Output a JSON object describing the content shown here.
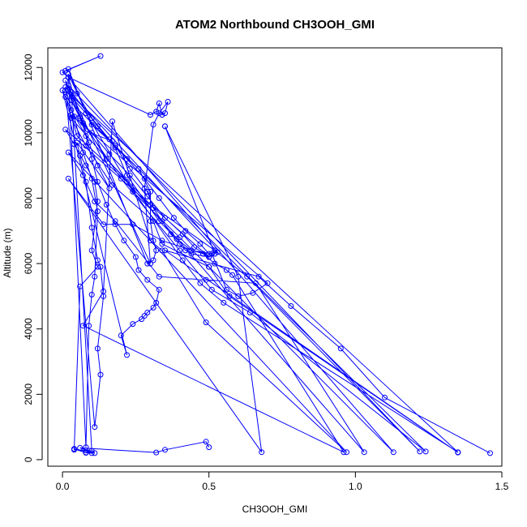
{
  "chart_data": {
    "type": "line",
    "title": "ATOM2 Northbound CH3OOH_GMI",
    "xlabel": "CH3OOH_GMI",
    "ylabel": "Altitude (m)",
    "xlim": [
      -0.05,
      1.5
    ],
    "ylim": [
      -200,
      12600
    ],
    "x_ticks": [
      0.0,
      0.5,
      1.0,
      1.5
    ],
    "x_tick_labels": [
      "0.0",
      "0.5",
      "1.0",
      "1.5"
    ],
    "y_ticks": [
      0,
      2000,
      4000,
      6000,
      8000,
      10000,
      12000
    ],
    "y_tick_labels": [
      "0",
      "2000",
      "4000",
      "6000",
      "8000",
      "10000",
      "12000"
    ],
    "marker": "open-circle",
    "grid": false,
    "legend": "none",
    "series": [
      {
        "color": "#0000ff",
        "x": [
          0.01,
          0.13,
          0.0,
          0.02,
          0.3,
          0.32,
          0.33,
          0.34,
          0.35,
          0.36,
          0.33,
          0.31,
          0.28,
          0.3,
          0.01,
          0.03,
          0.06,
          0.09,
          0.12,
          0.16,
          0.05,
          0.06,
          0.08,
          0.1,
          0.12,
          0.13,
          0.14,
          0.12,
          0.13,
          0.11,
          0.01,
          0.03,
          0.08,
          0.1,
          0.12,
          0.15,
          0.18,
          0.21,
          0.25,
          0.26,
          0.29,
          0.33,
          0.32,
          0.31,
          0.29,
          0.28,
          0.27,
          0.24,
          0.2,
          0.22,
          0.0,
          0.04,
          0.07,
          0.1,
          0.12,
          0.11,
          0.1,
          0.09,
          0.08,
          0.02,
          0.1,
          0.18,
          0.23,
          0.29,
          0.31,
          0.34,
          0.37,
          0.4,
          0.42,
          0.44,
          0.5,
          0.01,
          0.04,
          0.08,
          0.11,
          0.12,
          0.1,
          0.12,
          0.06,
          0.04,
          0.08,
          0.1,
          0.03,
          0.12,
          0.18,
          0.26,
          0.3,
          0.3,
          0.31,
          0.32,
          0.31,
          0.29,
          0.02,
          0.05,
          0.1,
          0.16,
          0.22,
          0.28,
          0.33,
          0.38,
          0.42,
          0.47,
          0.5,
          0.53,
          0.02,
          0.08,
          0.17,
          0.22,
          0.33,
          0.39,
          0.44,
          0.51,
          0.56,
          0.6,
          0.65,
          0.7,
          0.03,
          0.1,
          0.16,
          0.23,
          0.29,
          0.35,
          0.41,
          0.45,
          0.5,
          0.52,
          0.35,
          0.35,
          0.6,
          0.68,
          0.02,
          0.14,
          0.24,
          0.34,
          0.48,
          0.52,
          0.56,
          0.58,
          0.96,
          0.07,
          0.14,
          0.17,
          0.3,
          0.34,
          0.49,
          0.97,
          0.02,
          0.07,
          0.11,
          0.18,
          0.33,
          0.49,
          0.66,
          1.03,
          0.03,
          0.08,
          0.17,
          0.31,
          0.34,
          0.5,
          1.13,
          0.02,
          0.06,
          0.15,
          0.3,
          0.52,
          0.63,
          1.22,
          0.02,
          0.07,
          0.2,
          0.4,
          0.51,
          0.64,
          1.24,
          0.01,
          0.05,
          0.22,
          0.41,
          0.47,
          0.55,
          1.35,
          0.01,
          0.08,
          0.24,
          0.4,
          0.5,
          0.57,
          1.35,
          0.35,
          0.67,
          0.78,
          0.95,
          1.1,
          1.46
        ],
        "y": [
          11900,
          12350,
          11850,
          11700,
          10550,
          10650,
          10900,
          10550,
          10600,
          10950,
          10600,
          10250,
          8300,
          6000,
          11600,
          11000,
          10450,
          9700,
          9000,
          8300,
          9700,
          9300,
          8500,
          7100,
          6100,
          5900,
          5000,
          3400,
          2600,
          1000,
          11400,
          10700,
          9900,
          9200,
          8500,
          7800,
          7200,
          6700,
          6200,
          5800,
          5500,
          5200,
          4800,
          4650,
          4500,
          4400,
          4300,
          4150,
          3800,
          3200,
          11300,
          10500,
          9400,
          8600,
          7600,
          5600,
          5050,
          4100,
          380,
          11800,
          10250,
          9600,
          8900,
          8200,
          7700,
          7300,
          6900,
          6600,
          6400,
          6300,
          6200,
          10100,
          9650,
          9000,
          8500,
          7900,
          6400,
          5900,
          5300,
          300,
          280,
          270,
          11250,
          10200,
          9550,
          8900,
          8200,
          7300,
          6700,
          6400,
          6100,
          6000,
          11950,
          11200,
          10450,
          9800,
          9200,
          8600,
          8000,
          7400,
          7000,
          6600,
          6300,
          6350,
          11300,
          10050,
          9750,
          8700,
          7300,
          6750,
          6400,
          6300,
          5200,
          5000,
          5100,
          5400,
          10550,
          10000,
          9350,
          8700,
          8050,
          7400,
          6900,
          6500,
          6200,
          6300,
          10200,
          10200,
          5600,
          230,
          8600,
          7200,
          7200,
          6700,
          6300,
          6000,
          5800,
          5650,
          230,
          4100,
          5150,
          10350,
          6700,
          6400,
          4200,
          230,
          9400,
          8700,
          7900,
          7300,
          5600,
          5500,
          5400,
          230,
          10450,
          9600,
          8400,
          7300,
          6600,
          5900,
          230,
          11700,
          10500,
          9200,
          7800,
          6400,
          5600,
          250,
          11450,
          10300,
          8600,
          6400,
          5200,
          4500,
          250,
          11100,
          9900,
          8500,
          6100,
          5400,
          4800,
          230,
          11300,
          10600,
          8200,
          6800,
          5900,
          5000,
          220,
          6400,
          5600,
          4700,
          3400,
          1900,
          200
        ]
      },
      {
        "color": "#0000ff",
        "x": [
          0.08,
          0.1,
          0.08,
          0.04,
          0.11,
          0.06,
          0.32,
          0.35,
          0.49,
          0.5
        ],
        "y": [
          220,
          200,
          210,
          330,
          200,
          360,
          220,
          300,
          550,
          380
        ]
      }
    ]
  }
}
